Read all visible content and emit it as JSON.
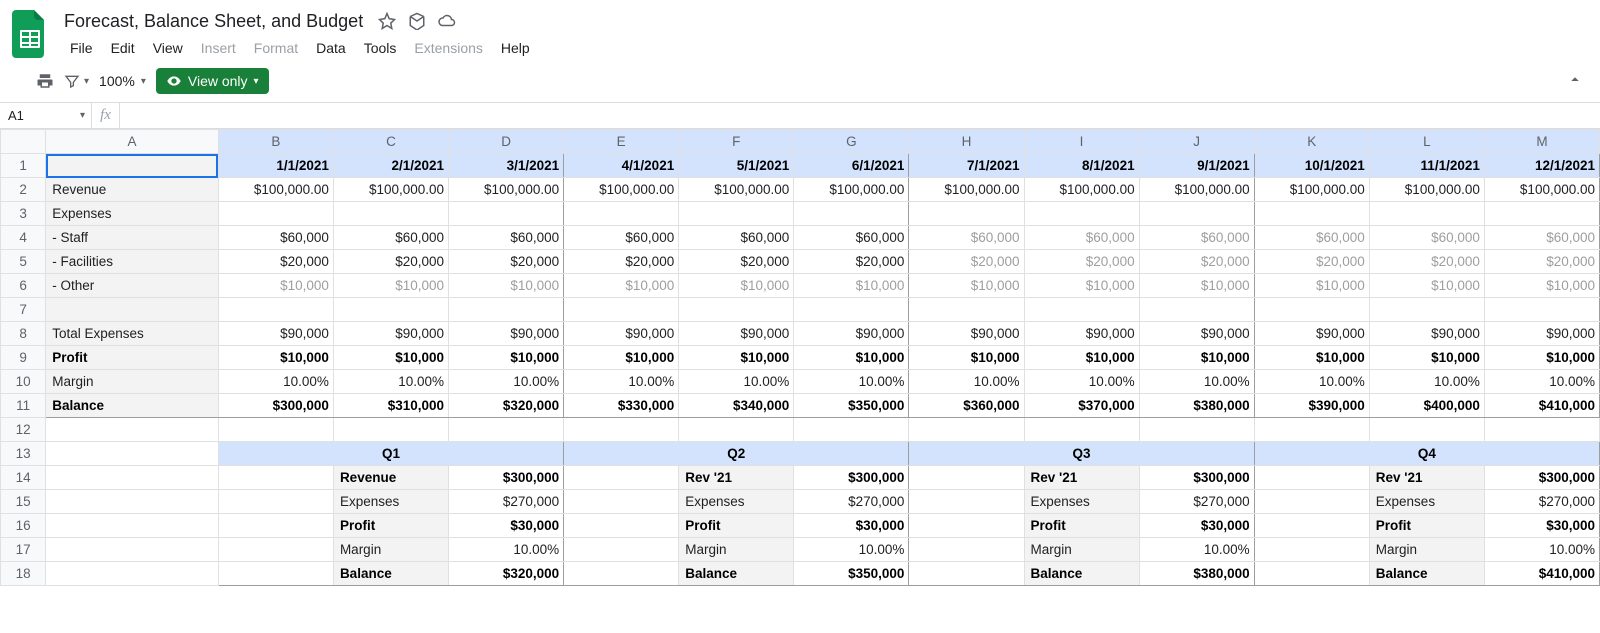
{
  "doc": {
    "title": "Forecast, Balance Sheet, and Budget"
  },
  "menu": {
    "file": "File",
    "edit": "Edit",
    "view": "View",
    "insert": "Insert",
    "format": "Format",
    "data": "Data",
    "tools": "Tools",
    "extensions": "Extensions",
    "help": "Help"
  },
  "toolbar": {
    "zoom": "100%",
    "view_only": "View only"
  },
  "fx": {
    "cell_ref": "A1",
    "fx_label": "fx"
  },
  "columns": [
    "A",
    "B",
    "C",
    "D",
    "E",
    "F",
    "G",
    "H",
    "I",
    "J",
    "K",
    "L",
    "M"
  ],
  "row_numbers": [
    "1",
    "2",
    "3",
    "4",
    "5",
    "6",
    "7",
    "8",
    "9",
    "10",
    "11",
    "12",
    "13",
    "14",
    "15",
    "16",
    "17",
    "18"
  ],
  "dates": [
    "1/1/2021",
    "2/1/2021",
    "3/1/2021",
    "4/1/2021",
    "5/1/2021",
    "6/1/2021",
    "7/1/2021",
    "8/1/2021",
    "9/1/2021",
    "10/1/2021",
    "11/1/2021",
    "12/1/2021"
  ],
  "labels": {
    "revenue": "Revenue",
    "expenses": "Expenses",
    "staff": " - Staff",
    "facilities": " - Facilities",
    "other": " - Other",
    "total_expenses": "Total Expenses",
    "profit": "Profit",
    "margin": "Margin",
    "balance": "Balance"
  },
  "rows": {
    "revenue": [
      "$100,000.00",
      "$100,000.00",
      "$100,000.00",
      "$100,000.00",
      "$100,000.00",
      "$100,000.00",
      "$100,000.00",
      "$100,000.00",
      "$100,000.00",
      "$100,000.00",
      "$100,000.00",
      "$100,000.00"
    ],
    "staff": [
      "$60,000",
      "$60,000",
      "$60,000",
      "$60,000",
      "$60,000",
      "$60,000",
      "$60,000",
      "$60,000",
      "$60,000",
      "$60,000",
      "$60,000",
      "$60,000"
    ],
    "facilities": [
      "$20,000",
      "$20,000",
      "$20,000",
      "$20,000",
      "$20,000",
      "$20,000",
      "$20,000",
      "$20,000",
      "$20,000",
      "$20,000",
      "$20,000",
      "$20,000"
    ],
    "other": [
      "$10,000",
      "$10,000",
      "$10,000",
      "$10,000",
      "$10,000",
      "$10,000",
      "$10,000",
      "$10,000",
      "$10,000",
      "$10,000",
      "$10,000",
      "$10,000"
    ],
    "total_expenses": [
      "$90,000",
      "$90,000",
      "$90,000",
      "$90,000",
      "$90,000",
      "$90,000",
      "$90,000",
      "$90,000",
      "$90,000",
      "$90,000",
      "$90,000",
      "$90,000"
    ],
    "profit": [
      "$10,000",
      "$10,000",
      "$10,000",
      "$10,000",
      "$10,000",
      "$10,000",
      "$10,000",
      "$10,000",
      "$10,000",
      "$10,000",
      "$10,000",
      "$10,000"
    ],
    "margin": [
      "10.00%",
      "10.00%",
      "10.00%",
      "10.00%",
      "10.00%",
      "10.00%",
      "10.00%",
      "10.00%",
      "10.00%",
      "10.00%",
      "10.00%",
      "10.00%"
    ],
    "balance": [
      "$300,000",
      "$310,000",
      "$320,000",
      "$330,000",
      "$340,000",
      "$350,000",
      "$360,000",
      "$370,000",
      "$380,000",
      "$390,000",
      "$400,000",
      "$410,000"
    ]
  },
  "quarters": {
    "headers": [
      "Q1",
      "Q2",
      "Q3",
      "Q4"
    ],
    "labels": {
      "revenue_q1": "Revenue",
      "revenue_rest": "Rev '21",
      "expenses": "Expenses",
      "profit": "Profit",
      "margin": "Margin",
      "balance": "Balance"
    },
    "q1": {
      "rev": "$300,000",
      "exp": "$270,000",
      "profit": "$30,000",
      "margin": "10.00%",
      "bal": "$320,000"
    },
    "q2": {
      "rev": "$300,000",
      "exp": "$270,000",
      "profit": "$30,000",
      "margin": "10.00%",
      "bal": "$350,000"
    },
    "q3": {
      "rev": "$300,000",
      "exp": "$270,000",
      "profit": "$30,000",
      "margin": "10.00%",
      "bal": "$380,000"
    },
    "q4": {
      "rev": "$300,000",
      "exp": "$270,000",
      "profit": "$30,000",
      "margin": "10.00%",
      "bal": "$410,000"
    }
  },
  "muted_cols_from": 6,
  "colors": {
    "accent": "#188038",
    "selection": "#d3e3fd",
    "active_border": "#1a73e8",
    "grid": "#e0e0e0",
    "muted_text": "#9e9e9e",
    "header_bg": "#f8f9fa",
    "rowlabel_bg": "#f3f3f3"
  }
}
